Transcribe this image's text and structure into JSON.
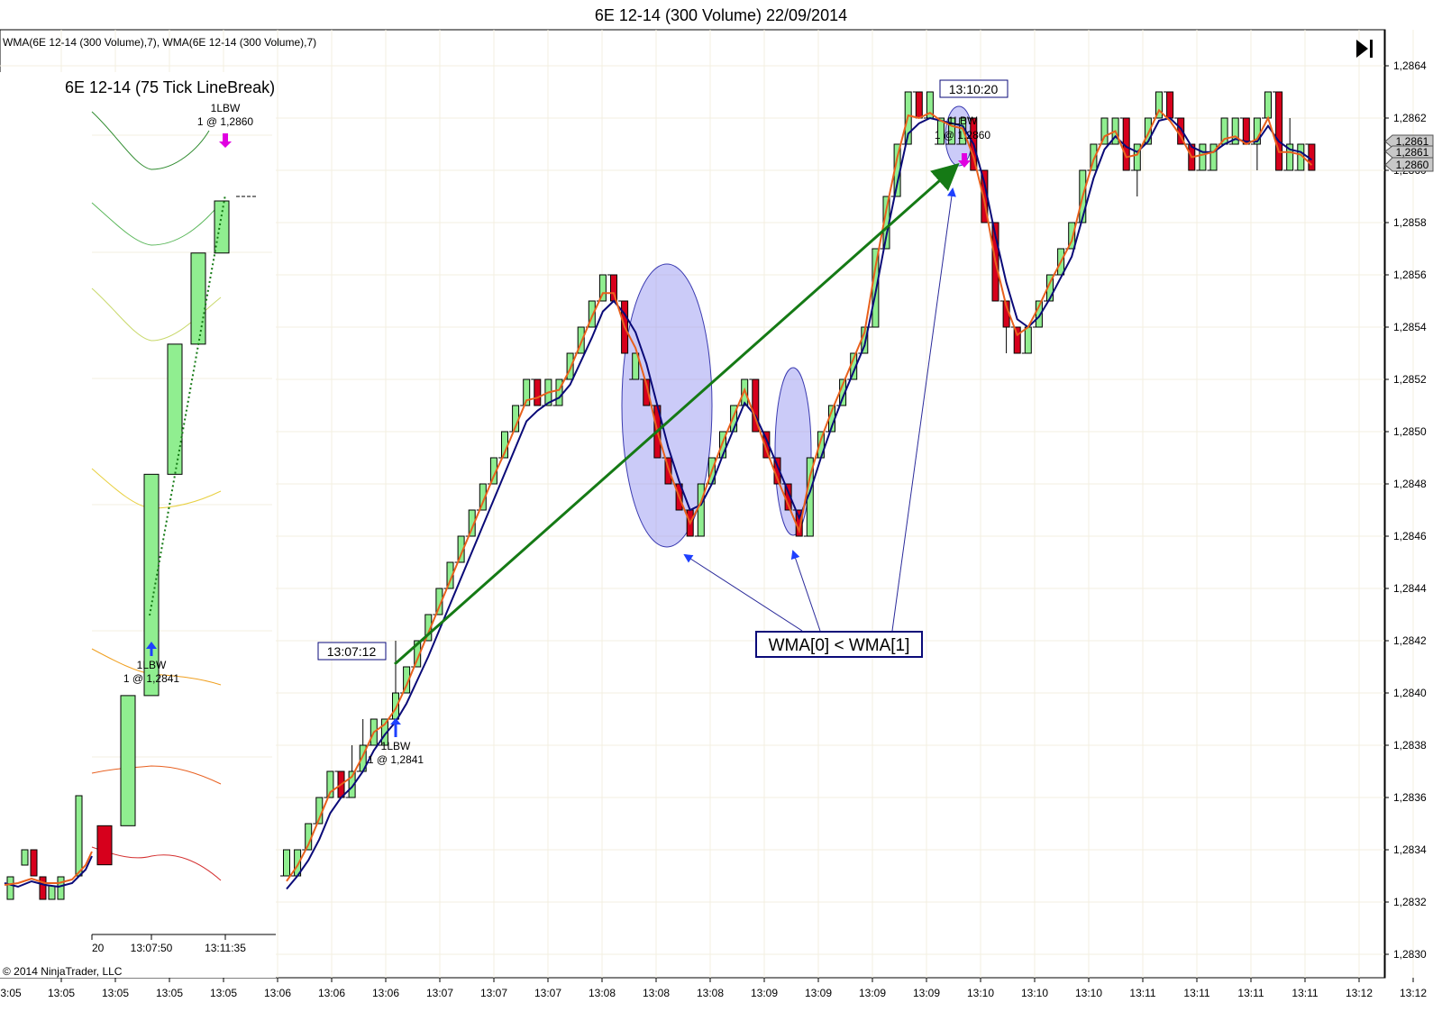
{
  "window": {
    "title": "6E 12-14 (300 Volume)  22/09/2014"
  },
  "indicator_label": "WMA(6E 12-14  (300 Volume),7), WMA(6E 12-14  (300 Volume),7)",
  "copyright": "© 2014 NinjaTrader, LLC",
  "go_to_end_icon": "skip-to-end-icon",
  "colors": {
    "up_bar": "#90EE90",
    "down_bar": "#D6001C",
    "wma_fast": "#E8601C",
    "wma_slow": "#0A0A78",
    "trend_arrow": "#157A15",
    "highlight": "#8C8CF0",
    "callout_border": "#0A0A78",
    "signal_buy": "#1E40FF",
    "signal_sell": "#E000E0"
  },
  "annotations": {
    "callout": "WMA[0] < WMA[1]",
    "time_tag_entry": "13:07:12",
    "time_tag_exit": "13:10:20",
    "main_buy_label": "1LBW",
    "main_buy_price": "1 @ 1,2841",
    "main_sell_label": "1LBW",
    "main_sell_price": "1 @ 1,2860"
  },
  "inset": {
    "title": "6E 12-14 (75 Tick LineBreak)",
    "buy_label": "1LBW",
    "buy_price": "1 @ 1,2841",
    "sell_label": "1LBW",
    "sell_price": "1 @ 1,2860",
    "x_ticks": [
      "20",
      "13:07:50",
      "13:11:35"
    ]
  },
  "price_markers": [
    "1,2861",
    "1,2861",
    "1,2860"
  ],
  "chart_data": {
    "type": "candlestick",
    "title": "6E 12-14 (300 Volume)  22/09/2014",
    "ylim": [
      1.2829,
      1.2865
    ],
    "y_ticks": [
      "1,2864",
      "1,2862",
      "1,2860",
      "1,2858",
      "1,2856",
      "1,2854",
      "1,2852",
      "1,2850",
      "1,2848",
      "1,2846",
      "1,2844",
      "1,2842",
      "1,2840",
      "1,2838",
      "1,2836",
      "1,2834",
      "1,2832",
      "1,2830"
    ],
    "x_ticks": [
      "13:05",
      "13:05",
      "13:05",
      "13:05",
      "13:06",
      "13:06",
      "13:06",
      "13:07",
      "13:07",
      "13:07",
      "13:08",
      "13:08",
      "13:08",
      "13:09",
      "13:09",
      "13:09",
      "13:09",
      "13:10",
      "13:10",
      "13:10",
      "13:11",
      "13:11",
      "13:11",
      "13:11",
      "13:12",
      "13:12"
    ],
    "x_tick_first": "3:05",
    "grid": true,
    "bars": [
      {
        "d": "u",
        "o": 1.2833,
        "c": 1.2834,
        "h": 1.2834,
        "l": 1.2833
      },
      {
        "d": "u",
        "o": 1.2833,
        "c": 1.2834,
        "h": 1.2834,
        "l": 1.2833
      },
      {
        "d": "u",
        "o": 1.2834,
        "c": 1.2835,
        "h": 1.2835,
        "l": 1.2834
      },
      {
        "d": "u",
        "o": 1.2835,
        "c": 1.2836,
        "h": 1.2836,
        "l": 1.2835
      },
      {
        "d": "u",
        "o": 1.2836,
        "c": 1.2837,
        "h": 1.2837,
        "l": 1.2836
      },
      {
        "d": "d",
        "o": 1.2837,
        "c": 1.2836,
        "h": 1.2837,
        "l": 1.2836
      },
      {
        "d": "u",
        "o": 1.2836,
        "c": 1.2837,
        "h": 1.2838,
        "l": 1.2836
      },
      {
        "d": "u",
        "o": 1.2837,
        "c": 1.2838,
        "h": 1.2839,
        "l": 1.2837
      },
      {
        "d": "u",
        "o": 1.2838,
        "c": 1.2839,
        "h": 1.2839,
        "l": 1.2838
      },
      {
        "d": "u",
        "o": 1.2838,
        "c": 1.2839,
        "h": 1.2839,
        "l": 1.2838
      },
      {
        "d": "u",
        "o": 1.2839,
        "c": 1.284,
        "h": 1.2842,
        "l": 1.2839
      },
      {
        "d": "u",
        "o": 1.284,
        "c": 1.2841,
        "h": 1.2841,
        "l": 1.284
      },
      {
        "d": "u",
        "o": 1.2841,
        "c": 1.2842,
        "h": 1.2842,
        "l": 1.2841
      },
      {
        "d": "u",
        "o": 1.2842,
        "c": 1.2843,
        "h": 1.2843,
        "l": 1.2842
      },
      {
        "d": "u",
        "o": 1.2843,
        "c": 1.2844,
        "h": 1.2844,
        "l": 1.2843
      },
      {
        "d": "u",
        "o": 1.2844,
        "c": 1.2845,
        "h": 1.2845,
        "l": 1.2844
      },
      {
        "d": "u",
        "o": 1.2845,
        "c": 1.2846,
        "h": 1.2846,
        "l": 1.2845
      },
      {
        "d": "u",
        "o": 1.2846,
        "c": 1.2847,
        "h": 1.2847,
        "l": 1.2846
      },
      {
        "d": "u",
        "o": 1.2847,
        "c": 1.2848,
        "h": 1.2848,
        "l": 1.2847
      },
      {
        "d": "u",
        "o": 1.2848,
        "c": 1.2849,
        "h": 1.2849,
        "l": 1.2848
      },
      {
        "d": "u",
        "o": 1.2849,
        "c": 1.285,
        "h": 1.285,
        "l": 1.2849
      },
      {
        "d": "u",
        "o": 1.285,
        "c": 1.2851,
        "h": 1.2851,
        "l": 1.285
      },
      {
        "d": "u",
        "o": 1.2851,
        "c": 1.2852,
        "h": 1.2852,
        "l": 1.2851
      },
      {
        "d": "d",
        "o": 1.2852,
        "c": 1.2851,
        "h": 1.2852,
        "l": 1.2851
      },
      {
        "d": "u",
        "o": 1.2851,
        "c": 1.2852,
        "h": 1.2852,
        "l": 1.2851
      },
      {
        "d": "u",
        "o": 1.2851,
        "c": 1.2852,
        "h": 1.2852,
        "l": 1.2851
      },
      {
        "d": "u",
        "o": 1.2852,
        "c": 1.2853,
        "h": 1.2853,
        "l": 1.2852
      },
      {
        "d": "u",
        "o": 1.2853,
        "c": 1.2854,
        "h": 1.2854,
        "l": 1.2853
      },
      {
        "d": "u",
        "o": 1.2854,
        "c": 1.2855,
        "h": 1.2855,
        "l": 1.2854
      },
      {
        "d": "u",
        "o": 1.2855,
        "c": 1.2856,
        "h": 1.2856,
        "l": 1.2855
      },
      {
        "d": "d",
        "o": 1.2856,
        "c": 1.2855,
        "h": 1.2856,
        "l": 1.2855
      },
      {
        "d": "d",
        "o": 1.2855,
        "c": 1.2853,
        "h": 1.2855,
        "l": 1.2853
      },
      {
        "d": "u",
        "o": 1.2852,
        "c": 1.2853,
        "h": 1.2853,
        "l": 1.2852
      },
      {
        "d": "d",
        "o": 1.2852,
        "c": 1.2851,
        "h": 1.2852,
        "l": 1.2851
      },
      {
        "d": "d",
        "o": 1.2851,
        "c": 1.2849,
        "h": 1.2851,
        "l": 1.2849
      },
      {
        "d": "d",
        "o": 1.2849,
        "c": 1.2848,
        "h": 1.2849,
        "l": 1.2848
      },
      {
        "d": "d",
        "o": 1.2848,
        "c": 1.2847,
        "h": 1.2848,
        "l": 1.2847
      },
      {
        "d": "d",
        "o": 1.2847,
        "c": 1.2846,
        "h": 1.2847,
        "l": 1.2846
      },
      {
        "d": "u",
        "o": 1.2846,
        "c": 1.2848,
        "h": 1.2848,
        "l": 1.2846
      },
      {
        "d": "u",
        "o": 1.2848,
        "c": 1.2849,
        "h": 1.2849,
        "l": 1.2848
      },
      {
        "d": "u",
        "o": 1.2849,
        "c": 1.285,
        "h": 1.285,
        "l": 1.2849
      },
      {
        "d": "u",
        "o": 1.285,
        "c": 1.2851,
        "h": 1.2851,
        "l": 1.285
      },
      {
        "d": "u",
        "o": 1.2851,
        "c": 1.2852,
        "h": 1.2852,
        "l": 1.2851
      },
      {
        "d": "d",
        "o": 1.2852,
        "c": 1.285,
        "h": 1.2852,
        "l": 1.285
      },
      {
        "d": "d",
        "o": 1.285,
        "c": 1.2849,
        "h": 1.285,
        "l": 1.2849
      },
      {
        "d": "d",
        "o": 1.2849,
        "c": 1.2848,
        "h": 1.2849,
        "l": 1.2848
      },
      {
        "d": "d",
        "o": 1.2848,
        "c": 1.2847,
        "h": 1.2848,
        "l": 1.2847
      },
      {
        "d": "d",
        "o": 1.2847,
        "c": 1.2846,
        "h": 1.2847,
        "l": 1.2846
      },
      {
        "d": "u",
        "o": 1.2846,
        "c": 1.2849,
        "h": 1.2849,
        "l": 1.2846
      },
      {
        "d": "u",
        "o": 1.2849,
        "c": 1.285,
        "h": 1.285,
        "l": 1.2849
      },
      {
        "d": "u",
        "o": 1.285,
        "c": 1.2851,
        "h": 1.2851,
        "l": 1.285
      },
      {
        "d": "u",
        "o": 1.2851,
        "c": 1.2852,
        "h": 1.2852,
        "l": 1.2851
      },
      {
        "d": "u",
        "o": 1.2852,
        "c": 1.2853,
        "h": 1.2853,
        "l": 1.2852
      },
      {
        "d": "u",
        "o": 1.2853,
        "c": 1.2854,
        "h": 1.2854,
        "l": 1.2853
      },
      {
        "d": "u",
        "o": 1.2854,
        "c": 1.2857,
        "h": 1.2857,
        "l": 1.2854
      },
      {
        "d": "u",
        "o": 1.2857,
        "c": 1.2859,
        "h": 1.2859,
        "l": 1.2857
      },
      {
        "d": "u",
        "o": 1.2859,
        "c": 1.2861,
        "h": 1.2861,
        "l": 1.2859
      },
      {
        "d": "u",
        "o": 1.2861,
        "c": 1.2863,
        "h": 1.2863,
        "l": 1.2861
      },
      {
        "d": "d",
        "o": 1.2863,
        "c": 1.2862,
        "h": 1.2863,
        "l": 1.2862
      },
      {
        "d": "u",
        "o": 1.2862,
        "c": 1.2863,
        "h": 1.2863,
        "l": 1.2862
      },
      {
        "d": "u",
        "o": 1.2861,
        "c": 1.2862,
        "h": 1.2862,
        "l": 1.2861
      },
      {
        "d": "u",
        "o": 1.2861,
        "c": 1.2862,
        "h": 1.2862,
        "l": 1.2861
      },
      {
        "d": "u",
        "o": 1.2861,
        "c": 1.2862,
        "h": 1.2862,
        "l": 1.2861
      },
      {
        "d": "d",
        "o": 1.2862,
        "c": 1.286,
        "h": 1.2862,
        "l": 1.286
      },
      {
        "d": "d",
        "o": 1.286,
        "c": 1.2858,
        "h": 1.286,
        "l": 1.2858
      },
      {
        "d": "d",
        "o": 1.2858,
        "c": 1.2855,
        "h": 1.2858,
        "l": 1.2855
      },
      {
        "d": "d",
        "o": 1.2855,
        "c": 1.2854,
        "h": 1.2855,
        "l": 1.2853
      },
      {
        "d": "d",
        "o": 1.2854,
        "c": 1.2853,
        "h": 1.2854,
        "l": 1.2853
      },
      {
        "d": "u",
        "o": 1.2853,
        "c": 1.2854,
        "h": 1.2854,
        "l": 1.2853
      },
      {
        "d": "u",
        "o": 1.2854,
        "c": 1.2855,
        "h": 1.2855,
        "l": 1.2854
      },
      {
        "d": "u",
        "o": 1.2855,
        "c": 1.2856,
        "h": 1.2856,
        "l": 1.2855
      },
      {
        "d": "u",
        "o": 1.2856,
        "c": 1.2857,
        "h": 1.2857,
        "l": 1.2856
      },
      {
        "d": "u",
        "o": 1.2857,
        "c": 1.2858,
        "h": 1.2858,
        "l": 1.2857
      },
      {
        "d": "u",
        "o": 1.2858,
        "c": 1.286,
        "h": 1.286,
        "l": 1.2858
      },
      {
        "d": "u",
        "o": 1.286,
        "c": 1.2861,
        "h": 1.2861,
        "l": 1.286
      },
      {
        "d": "u",
        "o": 1.2861,
        "c": 1.2862,
        "h": 1.2862,
        "l": 1.2861
      },
      {
        "d": "u",
        "o": 1.2861,
        "c": 1.2862,
        "h": 1.2862,
        "l": 1.2861
      },
      {
        "d": "d",
        "o": 1.2862,
        "c": 1.286,
        "h": 1.2862,
        "l": 1.286
      },
      {
        "d": "u",
        "o": 1.286,
        "c": 1.2861,
        "h": 1.2861,
        "l": 1.2859
      },
      {
        "d": "u",
        "o": 1.2861,
        "c": 1.2862,
        "h": 1.2862,
        "l": 1.2861
      },
      {
        "d": "u",
        "o": 1.2862,
        "c": 1.2863,
        "h": 1.2863,
        "l": 1.2862
      },
      {
        "d": "d",
        "o": 1.2863,
        "c": 1.2862,
        "h": 1.2863,
        "l": 1.2862
      },
      {
        "d": "d",
        "o": 1.2862,
        "c": 1.2861,
        "h": 1.2862,
        "l": 1.2861
      },
      {
        "d": "d",
        "o": 1.2861,
        "c": 1.286,
        "h": 1.2861,
        "l": 1.286
      },
      {
        "d": "u",
        "o": 1.286,
        "c": 1.2861,
        "h": 1.2861,
        "l": 1.286
      },
      {
        "d": "u",
        "o": 1.286,
        "c": 1.2861,
        "h": 1.2861,
        "l": 1.286
      },
      {
        "d": "u",
        "o": 1.2861,
        "c": 1.2862,
        "h": 1.2862,
        "l": 1.2861
      },
      {
        "d": "u",
        "o": 1.2861,
        "c": 1.2862,
        "h": 1.2862,
        "l": 1.2861
      },
      {
        "d": "d",
        "o": 1.2862,
        "c": 1.2861,
        "h": 1.2862,
        "l": 1.2861
      },
      {
        "d": "u",
        "o": 1.2861,
        "c": 1.2862,
        "h": 1.2862,
        "l": 1.286
      },
      {
        "d": "u",
        "o": 1.2862,
        "c": 1.2863,
        "h": 1.2863,
        "l": 1.2862
      },
      {
        "d": "d",
        "o": 1.2863,
        "c": 1.286,
        "h": 1.2863,
        "l": 1.286
      },
      {
        "d": "u",
        "o": 1.286,
        "c": 1.2861,
        "h": 1.2862,
        "l": 1.286
      },
      {
        "d": "u",
        "o": 1.286,
        "c": 1.2861,
        "h": 1.2861,
        "l": 1.286
      },
      {
        "d": "d",
        "o": 1.2861,
        "c": 1.286,
        "h": 1.2861,
        "l": 1.286
      }
    ],
    "wma_fast": [
      1.28328,
      1.28334,
      1.28342,
      1.28352,
      1.28362,
      1.28365,
      1.28368,
      1.28376,
      1.28385,
      1.28388,
      1.28394,
      1.28403,
      1.28413,
      1.28423,
      1.28433,
      1.28443,
      1.28453,
      1.28463,
      1.28473,
      1.28483,
      1.28492,
      1.28502,
      1.28512,
      1.28513,
      1.28515,
      1.28516,
      1.28524,
      1.28534,
      1.28544,
      1.28553,
      1.28553,
      1.2854,
      1.28532,
      1.28518,
      1.285,
      1.28486,
      1.28475,
      1.28465,
      1.28473,
      1.28485,
      1.28496,
      1.28506,
      1.28516,
      1.28505,
      1.28493,
      1.28482,
      1.28472,
      1.28462,
      1.28483,
      1.28497,
      1.28508,
      1.28518,
      1.28528,
      1.28538,
      1.28563,
      1.28585,
      1.28605,
      1.28621,
      1.2862,
      1.28622,
      1.28619,
      1.28617,
      1.28616,
      1.28605,
      1.28588,
      1.28565,
      1.28548,
      1.28537,
      1.2854,
      1.28548,
      1.28557,
      1.28565,
      1.28573,
      1.2859,
      1.28604,
      1.28613,
      1.28615,
      1.28605,
      1.28606,
      1.28614,
      1.28623,
      1.28619,
      1.28613,
      1.28605,
      1.28606,
      1.28607,
      1.28612,
      1.28613,
      1.2861,
      1.28612,
      1.2862,
      1.28607,
      1.28607,
      1.28606,
      1.28602
    ],
    "wma_slow": [
      1.28325,
      1.2833,
      1.28336,
      1.28344,
      1.28354,
      1.2836,
      1.28364,
      1.2837,
      1.28378,
      1.28384,
      1.28389,
      1.28396,
      1.28405,
      1.28414,
      1.28424,
      1.28434,
      1.28444,
      1.28454,
      1.28464,
      1.28474,
      1.28484,
      1.28494,
      1.28504,
      1.28508,
      1.28511,
      1.28513,
      1.28518,
      1.28527,
      1.28536,
      1.28546,
      1.2855,
      1.28545,
      1.28538,
      1.28526,
      1.2851,
      1.28494,
      1.28481,
      1.2847,
      1.28472,
      1.2848,
      1.28491,
      1.28501,
      1.28511,
      1.28506,
      1.28497,
      1.28487,
      1.28477,
      1.28467,
      1.28477,
      1.2849,
      1.28502,
      1.28513,
      1.28523,
      1.28533,
      1.28553,
      1.28575,
      1.28595,
      1.28614,
      1.28618,
      1.2862,
      1.28619,
      1.28618,
      1.28617,
      1.2861,
      1.28595,
      1.28575,
      1.28557,
      1.28543,
      1.2854,
      1.28544,
      1.28551,
      1.28559,
      1.28567,
      1.28582,
      1.28597,
      1.28608,
      1.28613,
      1.28609,
      1.28607,
      1.28611,
      1.28619,
      1.2862,
      1.28616,
      1.28609,
      1.28607,
      1.28607,
      1.2861,
      1.28612,
      1.28611,
      1.28611,
      1.28617,
      1.28611,
      1.28608,
      1.28607,
      1.28604
    ],
    "linebreak_inset": {
      "title": "6E 12-14 (75 Tick LineBreak)",
      "bars": [
        {
          "d": "d",
          "o": 1.2837,
          "c": 1.28355
        },
        {
          "d": "u",
          "o": 1.2837,
          "c": 1.2842
        },
        {
          "d": "u",
          "o": 1.2842,
          "c": 1.28505
        },
        {
          "d": "u",
          "o": 1.28505,
          "c": 1.28555
        },
        {
          "d": "u",
          "o": 1.28555,
          "c": 1.2859
        },
        {
          "d": "u",
          "o": 1.2859,
          "c": 1.2861
        }
      ]
    }
  }
}
